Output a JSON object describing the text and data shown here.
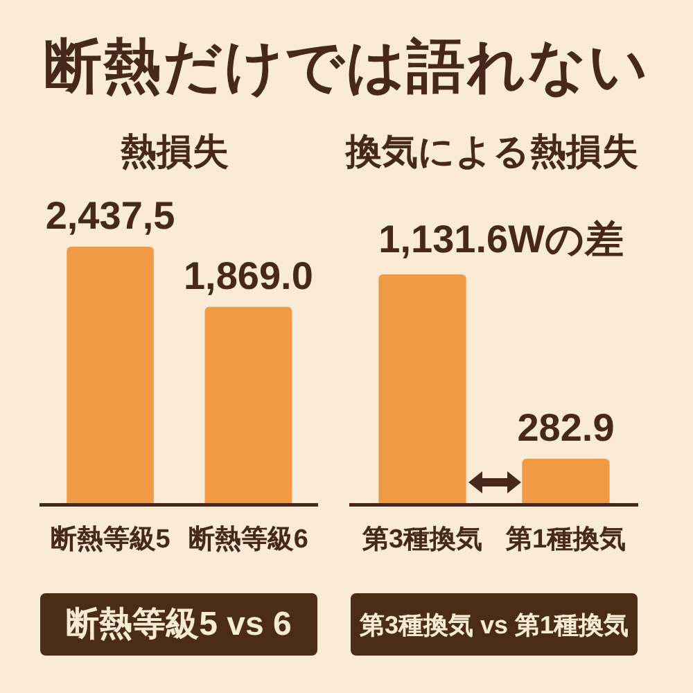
{
  "chart_data": [
    {
      "type": "bar",
      "title": "断熱だけでは語れない",
      "subtitle": "熱損失",
      "categories": [
        "断熱等級5",
        "断熱等級6"
      ],
      "values": [
        2437.5,
        1869.0
      ],
      "value_labels": [
        "2,437,5",
        "1,869.0"
      ],
      "color": "#f09a45",
      "tick_labels": "x",
      "annotations": [
        "断熱等級5 vs 6"
      ]
    },
    {
      "type": "bar",
      "subtitle": "換気による熱損失",
      "categories": [
        "第3種換気",
        "第1種換気"
      ],
      "values": [
        1414.5,
        282.9
      ],
      "value_labels": [
        null,
        "282.9"
      ],
      "color": "#f09a45",
      "tick_labels": "x",
      "annotations": [
        {
          "text": "1,131.6Wの差",
          "x": "第3種換気",
          "y": 1414.5
        },
        "第3種換気 vs 第1種換気"
      ]
    }
  ]
}
